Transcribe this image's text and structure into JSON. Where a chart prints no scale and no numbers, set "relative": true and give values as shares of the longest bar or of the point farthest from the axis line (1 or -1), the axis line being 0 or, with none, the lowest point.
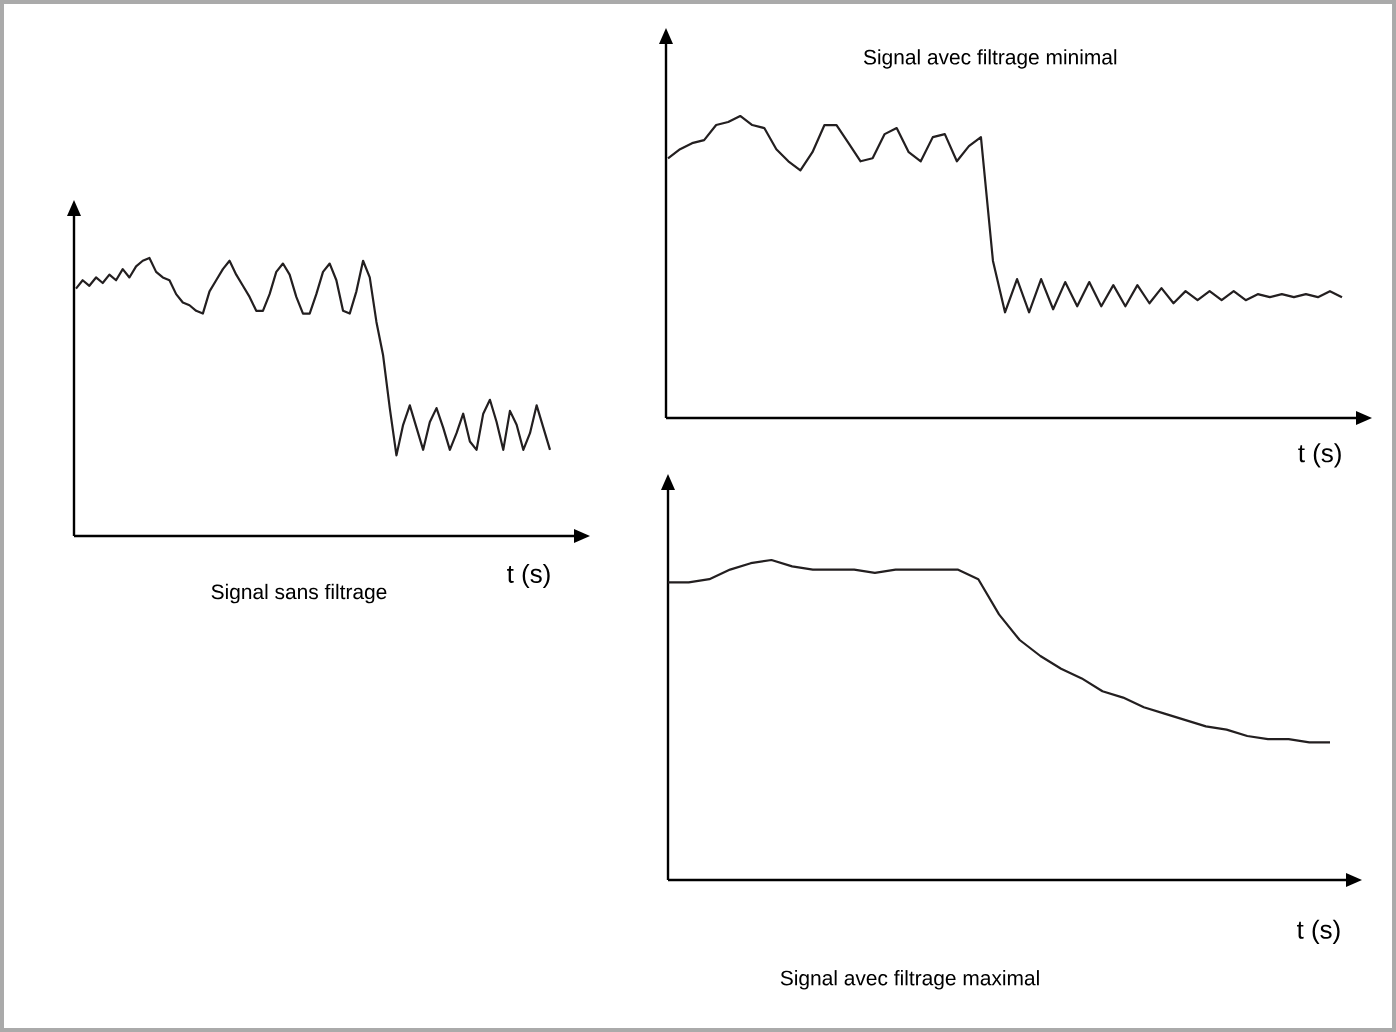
{
  "chart_data": [
    {
      "type": "line",
      "title": "Signal sans filtrage",
      "xlabel": "t (s)",
      "relative": true,
      "color": "#231f20",
      "categories": [
        null,
        null,
        null,
        null,
        null,
        null,
        null,
        null,
        null,
        null,
        null,
        null,
        null,
        null,
        null,
        null,
        null,
        null,
        null,
        null,
        null,
        null,
        null,
        null,
        null,
        null,
        null,
        null,
        null,
        null,
        null,
        null,
        null,
        null,
        null,
        null,
        null,
        null,
        null,
        null,
        null,
        null,
        null,
        null,
        null,
        null,
        null,
        null,
        null,
        null,
        null,
        null,
        null,
        null,
        null,
        null,
        null,
        null,
        null,
        null,
        null,
        null,
        null,
        null,
        null,
        null,
        null,
        null,
        null,
        null,
        null,
        null
      ],
      "values": [
        0.89,
        0.92,
        0.9,
        0.93,
        0.91,
        0.94,
        0.92,
        0.96,
        0.93,
        0.97,
        0.99,
        1.0,
        0.95,
        0.93,
        0.92,
        0.87,
        0.84,
        0.83,
        0.81,
        0.8,
        0.88,
        0.92,
        0.96,
        0.99,
        0.94,
        0.9,
        0.86,
        0.81,
        0.81,
        0.87,
        0.95,
        0.98,
        0.94,
        0.86,
        0.8,
        0.8,
        0.87,
        0.95,
        0.98,
        0.92,
        0.81,
        0.8,
        0.88,
        0.99,
        0.93,
        0.77,
        0.65,
        0.46,
        0.29,
        0.4,
        0.47,
        0.39,
        0.31,
        0.41,
        0.46,
        0.39,
        0.31,
        0.37,
        0.44,
        0.34,
        0.31,
        0.44,
        0.49,
        0.41,
        0.31,
        0.45,
        0.4,
        0.31,
        0.37,
        0.47,
        0.39,
        0.31
      ]
    },
    {
      "type": "line",
      "title": "Signal avec filtrage minimal",
      "xlabel": "t (s)",
      "relative": true,
      "color": "#231f20",
      "categories": [
        null,
        null,
        null,
        null,
        null,
        null,
        null,
        null,
        null,
        null,
        null,
        null,
        null,
        null,
        null,
        null,
        null,
        null,
        null,
        null,
        null,
        null,
        null,
        null,
        null,
        null,
        null,
        null,
        null,
        null,
        null,
        null,
        null,
        null,
        null,
        null,
        null,
        null,
        null,
        null,
        null,
        null,
        null,
        null,
        null,
        null,
        null,
        null,
        null,
        null,
        null,
        null,
        null,
        null,
        null,
        null,
        null
      ],
      "values": [
        0.86,
        0.89,
        0.91,
        0.92,
        0.97,
        0.98,
        1.0,
        0.97,
        0.96,
        0.89,
        0.85,
        0.82,
        0.88,
        0.97,
        0.97,
        0.91,
        0.85,
        0.86,
        0.94,
        0.96,
        0.88,
        0.85,
        0.93,
        0.94,
        0.85,
        0.9,
        0.93,
        0.52,
        0.35,
        0.46,
        0.35,
        0.46,
        0.36,
        0.45,
        0.37,
        0.45,
        0.37,
        0.44,
        0.37,
        0.44,
        0.38,
        0.43,
        0.38,
        0.42,
        0.39,
        0.42,
        0.39,
        0.42,
        0.39,
        0.41,
        0.4,
        0.41,
        0.4,
        0.41,
        0.4,
        0.42,
        0.4
      ]
    },
    {
      "type": "line",
      "title": "Signal avec filtrage maximal",
      "xlabel": "t (s)",
      "relative": true,
      "color": "#231f20",
      "categories": [
        null,
        null,
        null,
        null,
        null,
        null,
        null,
        null,
        null,
        null,
        null,
        null,
        null,
        null,
        null,
        null,
        null,
        null,
        null,
        null,
        null,
        null,
        null,
        null,
        null,
        null,
        null,
        null,
        null,
        null,
        null,
        null,
        null
      ],
      "values": [
        0.93,
        0.93,
        0.94,
        0.97,
        0.99,
        1.0,
        0.98,
        0.97,
        0.97,
        0.97,
        0.96,
        0.97,
        0.97,
        0.97,
        0.97,
        0.94,
        0.83,
        0.75,
        0.7,
        0.66,
        0.63,
        0.59,
        0.57,
        0.54,
        0.52,
        0.5,
        0.48,
        0.47,
        0.45,
        0.44,
        0.44,
        0.43,
        0.43
      ]
    }
  ]
}
